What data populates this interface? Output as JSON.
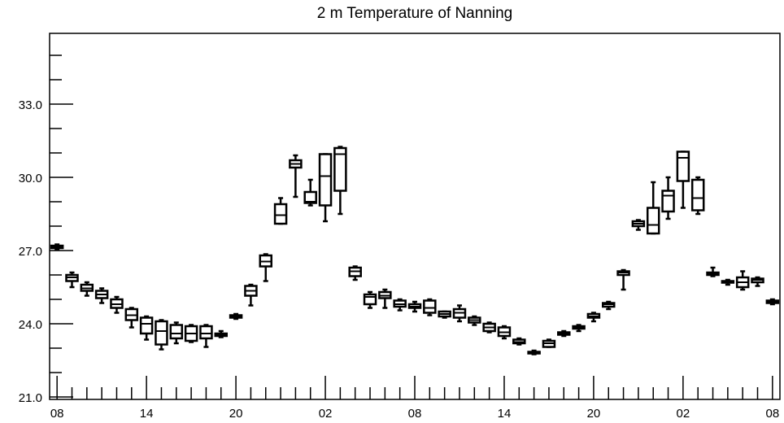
{
  "chart_data": {
    "type": "box",
    "title": "2 m Temperature of Nanning",
    "xlabel": "",
    "ylabel": "",
    "ylim": [
      20.9,
      35.9
    ],
    "y_major_ticks": [
      21.0,
      24.0,
      27.0,
      30.0,
      33.0
    ],
    "y_tick_labels": [
      "21.0",
      "24.0",
      "27.0",
      "30.0",
      "33.0"
    ],
    "y_minor_step": 1.0,
    "x_range": [
      -0.5,
      48.5
    ],
    "x_tick_positions": [
      0,
      6,
      12,
      18,
      24,
      30,
      36,
      42,
      48
    ],
    "x_tick_labels": [
      "08",
      "14",
      "20",
      "02",
      "08",
      "14",
      "20",
      "02",
      "08"
    ],
    "grid": false,
    "boxes": [
      {
        "x": 0,
        "min": 27.05,
        "q1": 27.1,
        "median": 27.15,
        "q3": 27.2,
        "max": 27.25
      },
      {
        "x": 1,
        "min": 25.5,
        "q1": 25.75,
        "median": 25.9,
        "q3": 26.0,
        "max": 26.1
      },
      {
        "x": 2,
        "min": 25.15,
        "q1": 25.35,
        "median": 25.45,
        "q3": 25.6,
        "max": 25.7
      },
      {
        "x": 3,
        "min": 24.85,
        "q1": 25.05,
        "median": 25.2,
        "q3": 25.35,
        "max": 25.45
      },
      {
        "x": 4,
        "min": 24.45,
        "q1": 24.65,
        "median": 24.8,
        "q3": 25.0,
        "max": 25.1
      },
      {
        "x": 5,
        "min": 23.85,
        "q1": 24.15,
        "median": 24.35,
        "q3": 24.6,
        "max": 24.65
      },
      {
        "x": 6,
        "min": 23.35,
        "q1": 23.6,
        "median": 24.0,
        "q3": 24.25,
        "max": 24.3
      },
      {
        "x": 7,
        "min": 22.95,
        "q1": 23.15,
        "median": 23.7,
        "q3": 24.1,
        "max": 24.15
      },
      {
        "x": 8,
        "min": 23.2,
        "q1": 23.4,
        "median": 23.6,
        "q3": 23.95,
        "max": 24.05
      },
      {
        "x": 9,
        "min": 23.25,
        "q1": 23.3,
        "median": 23.6,
        "q3": 23.9,
        "max": 23.95
      },
      {
        "x": 10,
        "min": 23.05,
        "q1": 23.4,
        "median": 23.6,
        "q3": 23.9,
        "max": 23.95
      },
      {
        "x": 11,
        "min": 23.45,
        "q1": 23.5,
        "median": 23.55,
        "q3": 23.6,
        "max": 23.7
      },
      {
        "x": 12,
        "min": 24.2,
        "q1": 24.25,
        "median": 24.3,
        "q3": 24.35,
        "max": 24.4
      },
      {
        "x": 13,
        "min": 24.75,
        "q1": 25.15,
        "median": 25.35,
        "q3": 25.55,
        "max": 25.6
      },
      {
        "x": 14,
        "min": 25.75,
        "q1": 26.35,
        "median": 26.55,
        "q3": 26.8,
        "max": 26.85
      },
      {
        "x": 15,
        "min": 28.1,
        "q1": 28.1,
        "median": 28.45,
        "q3": 28.9,
        "max": 29.15
      },
      {
        "x": 16,
        "min": 29.2,
        "q1": 30.4,
        "median": 30.55,
        "q3": 30.7,
        "max": 30.9
      },
      {
        "x": 17,
        "min": 28.85,
        "q1": 28.95,
        "median": 29.0,
        "q3": 29.4,
        "max": 29.9
      },
      {
        "x": 18,
        "min": 28.2,
        "q1": 28.85,
        "median": 30.05,
        "q3": 30.95,
        "max": 30.95
      },
      {
        "x": 19,
        "min": 28.5,
        "q1": 29.45,
        "median": 30.95,
        "q3": 31.2,
        "max": 31.25
      },
      {
        "x": 20,
        "min": 25.8,
        "q1": 25.95,
        "median": 26.15,
        "q3": 26.3,
        "max": 26.35
      },
      {
        "x": 21,
        "min": 24.65,
        "q1": 24.8,
        "median": 25.1,
        "q3": 25.2,
        "max": 25.3
      },
      {
        "x": 22,
        "min": 24.65,
        "q1": 25.05,
        "median": 25.15,
        "q3": 25.3,
        "max": 25.4
      },
      {
        "x": 23,
        "min": 24.55,
        "q1": 24.7,
        "median": 24.8,
        "q3": 24.95,
        "max": 25.0
      },
      {
        "x": 24,
        "min": 24.5,
        "q1": 24.65,
        "median": 24.7,
        "q3": 24.8,
        "max": 24.9
      },
      {
        "x": 25,
        "min": 24.35,
        "q1": 24.45,
        "median": 24.65,
        "q3": 24.95,
        "max": 25.0
      },
      {
        "x": 26,
        "min": 24.25,
        "q1": 24.3,
        "median": 24.4,
        "q3": 24.5,
        "max": 24.5
      },
      {
        "x": 27,
        "min": 24.1,
        "q1": 24.25,
        "median": 24.45,
        "q3": 24.6,
        "max": 24.75
      },
      {
        "x": 28,
        "min": 23.95,
        "q1": 24.05,
        "median": 24.15,
        "q3": 24.25,
        "max": 24.3
      },
      {
        "x": 29,
        "min": 23.65,
        "q1": 23.7,
        "median": 23.85,
        "q3": 24.0,
        "max": 24.05
      },
      {
        "x": 30,
        "min": 23.4,
        "q1": 23.5,
        "median": 23.65,
        "q3": 23.85,
        "max": 23.9
      },
      {
        "x": 31,
        "min": 23.15,
        "q1": 23.2,
        "median": 23.25,
        "q3": 23.35,
        "max": 23.4
      },
      {
        "x": 32,
        "min": 22.75,
        "q1": 22.8,
        "median": 22.8,
        "q3": 22.85,
        "max": 22.9
      },
      {
        "x": 33,
        "min": 23.05,
        "q1": 23.05,
        "median": 23.2,
        "q3": 23.3,
        "max": 23.35
      },
      {
        "x": 34,
        "min": 23.5,
        "q1": 23.55,
        "median": 23.6,
        "q3": 23.65,
        "max": 23.7
      },
      {
        "x": 35,
        "min": 23.7,
        "q1": 23.8,
        "median": 23.85,
        "q3": 23.9,
        "max": 23.95
      },
      {
        "x": 36,
        "min": 24.1,
        "q1": 24.25,
        "median": 24.3,
        "q3": 24.4,
        "max": 24.45
      },
      {
        "x": 37,
        "min": 24.6,
        "q1": 24.7,
        "median": 24.8,
        "q3": 24.85,
        "max": 24.9
      },
      {
        "x": 38,
        "min": 25.4,
        "q1": 26.0,
        "median": 26.1,
        "q3": 26.15,
        "max": 26.2
      },
      {
        "x": 39,
        "min": 27.85,
        "q1": 28.0,
        "median": 28.1,
        "q3": 28.2,
        "max": 28.25
      },
      {
        "x": 40,
        "min": 27.7,
        "q1": 27.7,
        "median": 28.05,
        "q3": 28.75,
        "max": 29.8
      },
      {
        "x": 41,
        "min": 28.3,
        "q1": 28.6,
        "median": 29.25,
        "q3": 29.45,
        "max": 30.0
      },
      {
        "x": 42,
        "min": 28.75,
        "q1": 29.85,
        "median": 30.8,
        "q3": 31.05,
        "max": 31.05
      },
      {
        "x": 43,
        "min": 28.5,
        "q1": 28.65,
        "median": 29.15,
        "q3": 29.9,
        "max": 30.0
      },
      {
        "x": 44,
        "min": 25.95,
        "q1": 26.0,
        "median": 26.05,
        "q3": 26.1,
        "max": 26.3
      },
      {
        "x": 45,
        "min": 25.6,
        "q1": 25.7,
        "median": 25.7,
        "q3": 25.75,
        "max": 25.8
      },
      {
        "x": 46,
        "min": 25.4,
        "q1": 25.5,
        "median": 25.7,
        "q3": 25.9,
        "max": 26.15
      },
      {
        "x": 47,
        "min": 25.55,
        "q1": 25.7,
        "median": 25.8,
        "q3": 25.85,
        "max": 25.9
      },
      {
        "x": 48,
        "min": 24.8,
        "q1": 24.85,
        "median": 24.9,
        "q3": 24.95,
        "max": 25.0
      }
    ]
  }
}
